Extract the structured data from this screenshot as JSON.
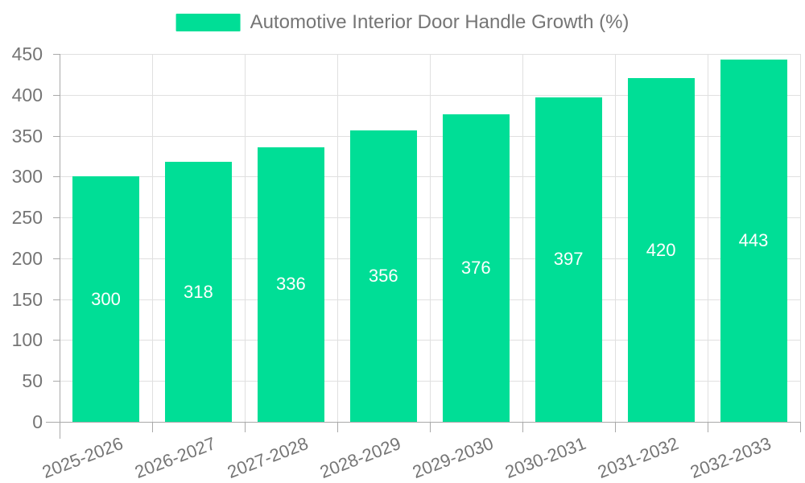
{
  "legend": {
    "items": [
      {
        "label": "Automotive Interior Door Handle Growth (%)",
        "color": "#00DE96"
      }
    ]
  },
  "chart_data": {
    "type": "bar",
    "title": "Automotive Interior Door Handle Growth (%)",
    "series_name": "Automotive Interior Door Handle Growth (%)",
    "categories": [
      "2025-2026",
      "2026-2027",
      "2027-2028",
      "2028-2029",
      "2029-2030",
      "2030-2031",
      "2031-2032",
      "2032-2033"
    ],
    "values": [
      300,
      318,
      336,
      356,
      376,
      397,
      420,
      443
    ],
    "value_labels": [
      "300",
      "318",
      "336",
      "356",
      "376",
      "397",
      "420",
      "443"
    ],
    "xlabel": "",
    "ylabel": "",
    "ylim": [
      0,
      450
    ],
    "y_tick_step": 50,
    "y_tick_labels": [
      "0",
      "50",
      "100",
      "150",
      "200",
      "250",
      "300",
      "350",
      "400",
      "450"
    ],
    "grid": true,
    "legend_position": "top-center",
    "bar_color": "#00DE96",
    "value_label_color": "#ffffff",
    "grid_color": "#e0e0e0",
    "axis_color": "#a9a9a9",
    "text_color": "#757575"
  }
}
